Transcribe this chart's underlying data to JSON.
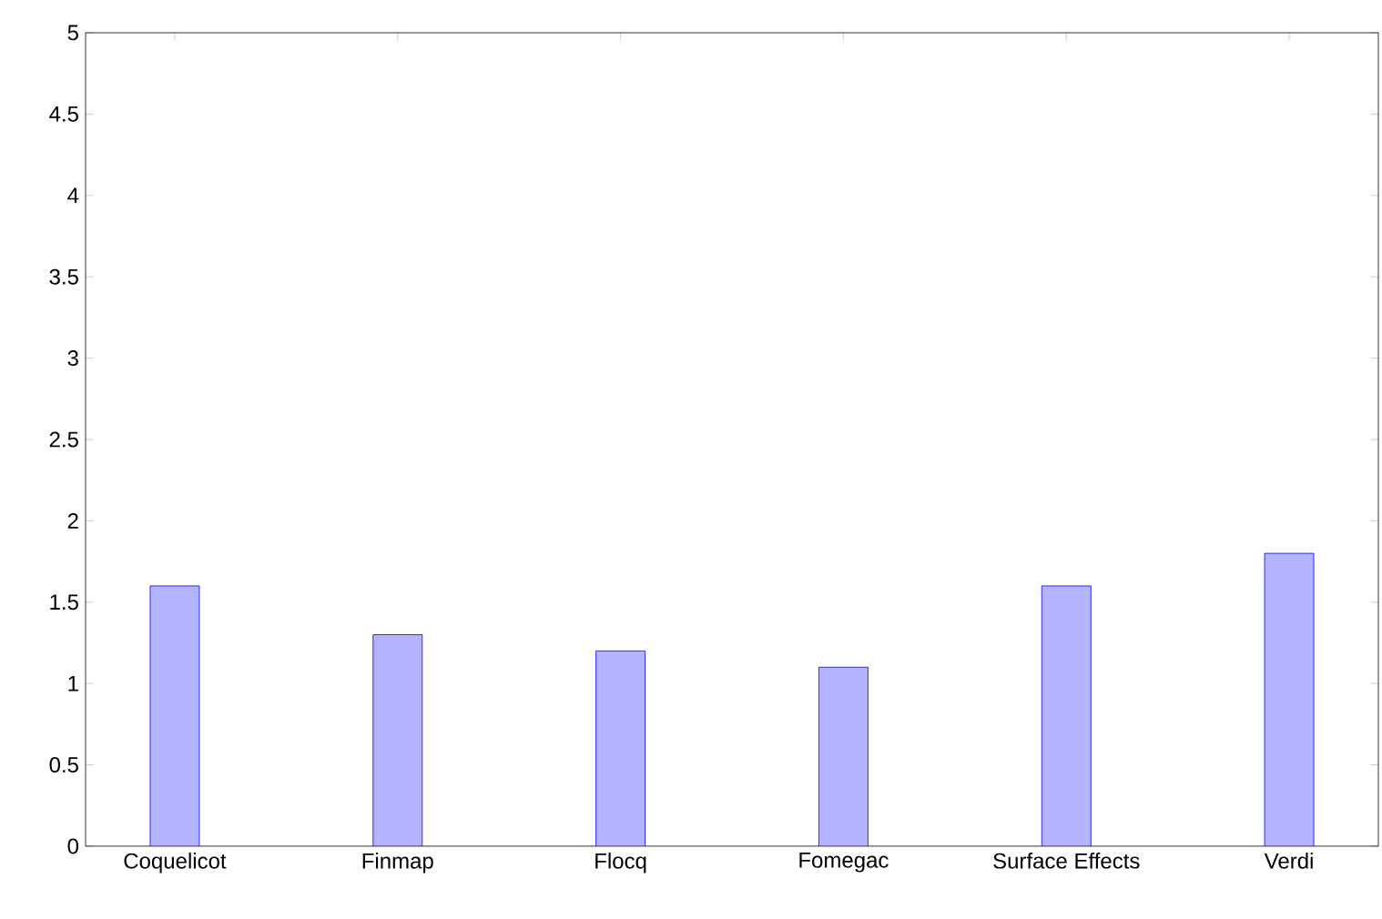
{
  "chart_data": {
    "type": "bar",
    "categories": [
      "Coquelicot",
      "Finmap",
      "Flocq",
      "Fomegac",
      "Surface Effects",
      "Verdi"
    ],
    "values": [
      1.6,
      1.3,
      1.2,
      1.1,
      1.6,
      1.8
    ],
    "color": "#b3b3ff",
    "ylim": [
      0,
      5
    ],
    "yticks": [
      0,
      0.5,
      1,
      1.5,
      2,
      2.5,
      3,
      3.5,
      4,
      4.5,
      5
    ],
    "grid": false
  }
}
